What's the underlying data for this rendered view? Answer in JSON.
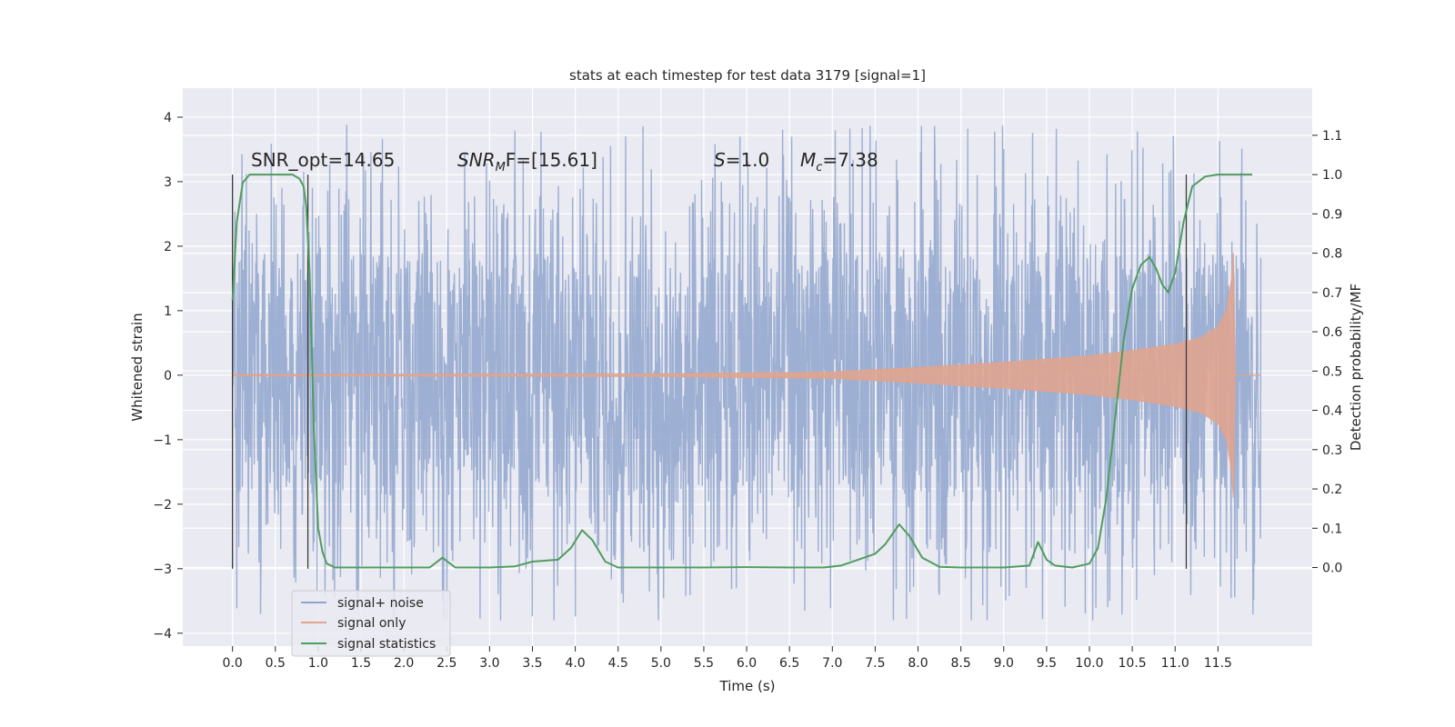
{
  "chart_data": {
    "type": "line",
    "title": "stats at each timestep for test data 3179 [signal=1]",
    "xlabel": "Time (s)",
    "ylabel": "Whitened strain",
    "ylabel_right": "Detection probability/MF",
    "xlim": [
      -0.58,
      12.6
    ],
    "ylim": [
      -4.2,
      4.45
    ],
    "ylim_right": [
      -0.2,
      1.22
    ],
    "x_ticks": [
      "0.0",
      "0.5",
      "1.0",
      "1.5",
      "2.0",
      "2.5",
      "3.0",
      "3.5",
      "4.0",
      "4.5",
      "5.0",
      "5.5",
      "6.0",
      "6.5",
      "7.0",
      "7.5",
      "8.0",
      "8.5",
      "9.0",
      "9.5",
      "10.0",
      "10.5",
      "11.0",
      "11.5"
    ],
    "y_ticks": [
      -4,
      -3,
      -2,
      -1,
      0,
      1,
      2,
      3,
      4
    ],
    "y_ticks_right": [
      "0.0",
      "0.1",
      "0.2",
      "0.3",
      "0.4",
      "0.5",
      "0.6",
      "0.7",
      "0.8",
      "0.9",
      "1.0",
      "1.1"
    ],
    "grid": true,
    "legend_position": "lower-left",
    "annotations": {
      "snr_opt": "SNR_opt=14.65",
      "snr_mf_main": "SNR",
      "snr_mf_sub": "M",
      "snr_mf_rest": "F=[15.61]",
      "s_label": "S",
      "s_rest": "=1.0",
      "mc_main": "M",
      "mc_sub": "c",
      "mc_rest": "=7.38"
    },
    "vertical_lines_x": [
      0.0,
      0.88,
      11.13
    ],
    "series": [
      {
        "name": "signal+ noise",
        "color": "#8fa4cc",
        "envelope": {
          "x_range": [
            0.0,
            12.0
          ],
          "core_amplitude": 1.9,
          "peak_max": 4.1,
          "peak_min": -3.8
        }
      },
      {
        "name": "signal only",
        "color": "#e0a48f",
        "envelope": {
          "x": [
            0.0,
            5.0,
            7.0,
            8.0,
            9.0,
            10.0,
            10.5,
            11.0,
            11.3,
            11.5,
            11.6,
            11.66,
            11.68,
            11.7
          ],
          "amp": [
            0.01,
            0.02,
            0.05,
            0.12,
            0.2,
            0.3,
            0.38,
            0.48,
            0.58,
            0.75,
            1.0,
            1.5,
            1.9,
            0.2
          ]
        }
      },
      {
        "name": "signal statistics",
        "color": "#4f9d5f",
        "x": [
          0.0,
          0.05,
          0.12,
          0.2,
          0.3,
          0.5,
          0.7,
          0.78,
          0.83,
          0.86,
          0.9,
          0.95,
          1.0,
          1.05,
          1.1,
          1.2,
          1.5,
          2.0,
          2.3,
          2.45,
          2.6,
          3.0,
          3.3,
          3.5,
          3.8,
          3.95,
          4.08,
          4.2,
          4.35,
          4.5,
          5.0,
          5.5,
          6.0,
          6.5,
          6.9,
          7.1,
          7.3,
          7.5,
          7.62,
          7.78,
          7.9,
          8.05,
          8.25,
          8.5,
          9.0,
          9.3,
          9.4,
          9.5,
          9.6,
          9.8,
          10.0,
          10.1,
          10.2,
          10.3,
          10.4,
          10.5,
          10.6,
          10.7,
          10.78,
          10.85,
          10.92,
          11.0,
          11.1,
          11.2,
          11.35,
          11.5,
          11.7,
          11.9
        ],
        "y": [
          0.68,
          0.88,
          0.98,
          1.0,
          1.0,
          1.0,
          1.0,
          0.99,
          0.97,
          0.92,
          0.75,
          0.35,
          0.1,
          0.04,
          0.01,
          0.0,
          0.0,
          0.0,
          0.0,
          0.025,
          0.0,
          0.0,
          0.003,
          0.015,
          0.02,
          0.05,
          0.095,
          0.07,
          0.015,
          0.0,
          0.0,
          0.0,
          0.001,
          0.0,
          0.0,
          0.005,
          0.02,
          0.035,
          0.06,
          0.11,
          0.08,
          0.025,
          0.002,
          0.0,
          0.0,
          0.005,
          0.065,
          0.02,
          0.005,
          0.0,
          0.01,
          0.05,
          0.18,
          0.38,
          0.58,
          0.71,
          0.77,
          0.79,
          0.76,
          0.72,
          0.7,
          0.75,
          0.88,
          0.97,
          0.995,
          1.0,
          1.0,
          1.0
        ]
      }
    ]
  }
}
